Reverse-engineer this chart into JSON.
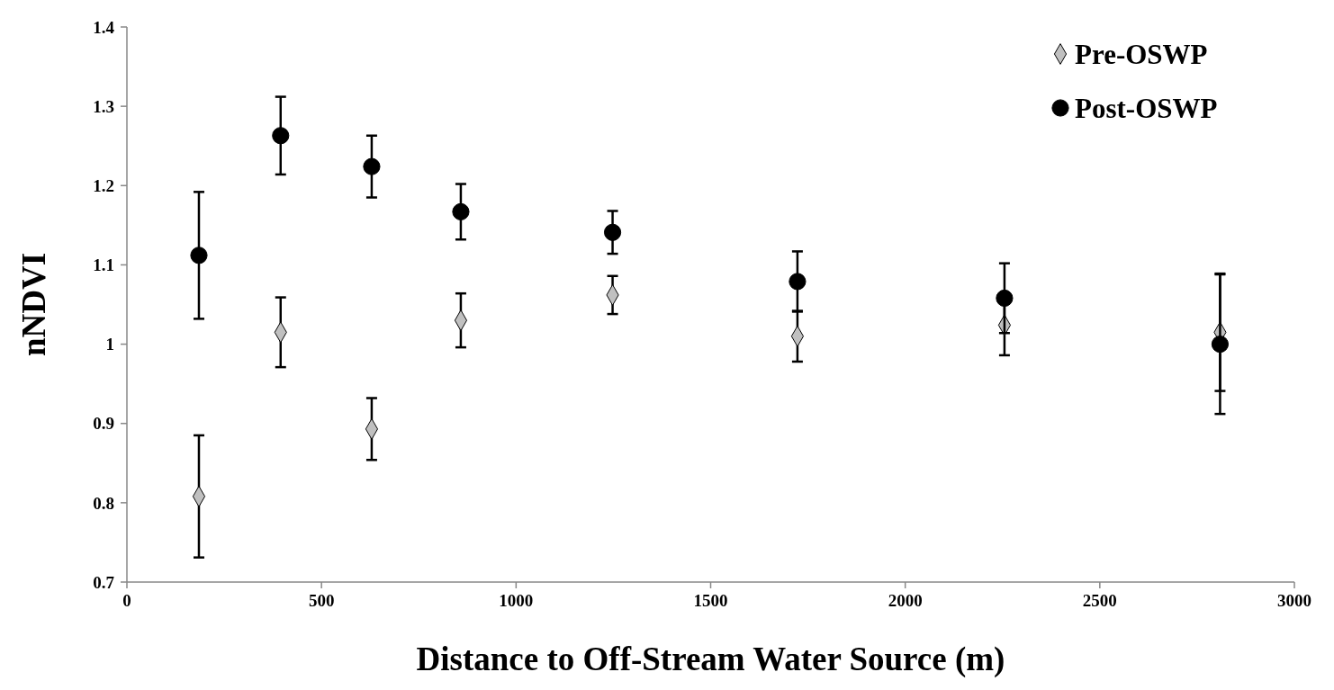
{
  "chart_data": {
    "type": "scatter",
    "xlabel": "Distance to Off-Stream Water Source (m)",
    "ylabel": "nNDVI",
    "xlim": [
      0,
      3000
    ],
    "xticks": [
      0,
      500,
      1000,
      1500,
      2000,
      2500,
      3000
    ],
    "ylim": [
      0.7,
      1.4
    ],
    "yticks": [
      {
        "value": 0.7,
        "label": "0.7"
      },
      {
        "value": 0.8,
        "label": "0.8"
      },
      {
        "value": 0.9,
        "label": "0.9"
      },
      1,
      {
        "value": 1.1,
        "label": "1.1"
      },
      {
        "value": 1.2,
        "label": "1.2"
      },
      {
        "value": 1.3,
        "label": "1.3"
      },
      {
        "value": 1.4,
        "label": "1.4"
      }
    ],
    "grid": false,
    "legend": "top right",
    "series": [
      {
        "name": "Pre-OSWP",
        "color": "#c0c0c0",
        "marker": "diamond",
        "x": [
          185,
          395,
          629,
          858,
          1248,
          1723,
          2255,
          2809
        ],
        "values": [
          0.808,
          1.015,
          0.893,
          1.03,
          1.062,
          1.01,
          1.024,
          1.015
        ],
        "errors": [
          0.077,
          0.044,
          0.039,
          0.034,
          0.024,
          0.032,
          0.038,
          0.074
        ]
      },
      {
        "name": "Post-OSWP",
        "color": "#000000",
        "marker": "circle",
        "x": [
          185,
          395,
          629,
          858,
          1248,
          1723,
          2255,
          2809
        ],
        "values": [
          1.112,
          1.263,
          1.224,
          1.167,
          1.141,
          1.079,
          1.058,
          1.0
        ],
        "errors": [
          0.08,
          0.049,
          0.039,
          0.035,
          0.027,
          0.038,
          0.044,
          0.088
        ]
      }
    ]
  }
}
